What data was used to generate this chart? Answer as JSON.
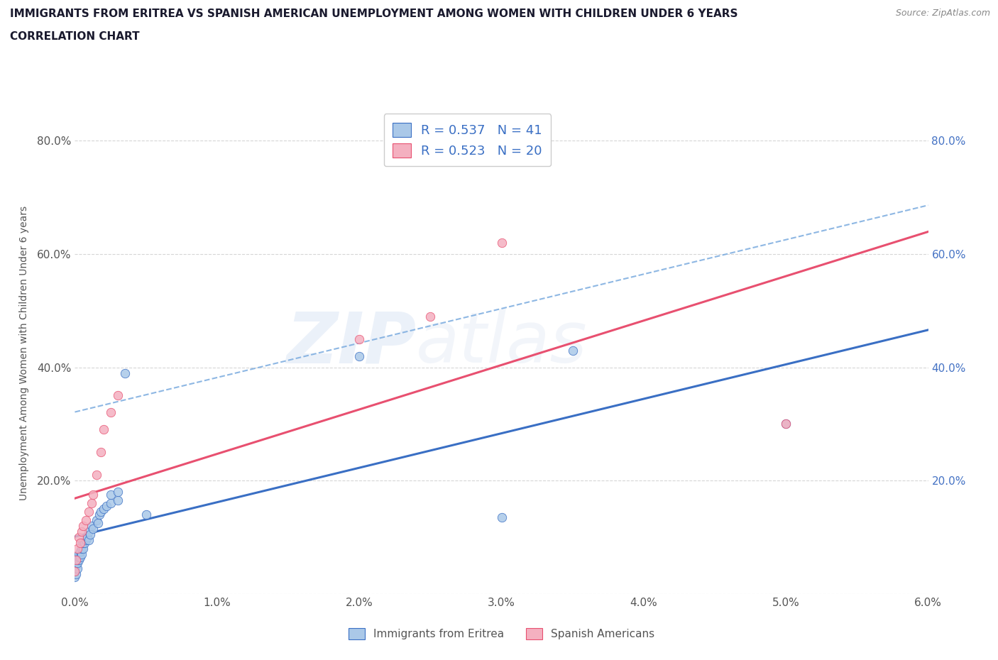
{
  "title_line1": "IMMIGRANTS FROM ERITREA VS SPANISH AMERICAN UNEMPLOYMENT AMONG WOMEN WITH CHILDREN UNDER 6 YEARS",
  "title_line2": "CORRELATION CHART",
  "source": "Source: ZipAtlas.com",
  "ylabel": "Unemployment Among Women with Children Under 6 years",
  "watermark_zip": "ZIP",
  "watermark_atlas": "atlas",
  "xlim": [
    0.0,
    0.06
  ],
  "ylim": [
    0.0,
    0.85
  ],
  "x_ticks": [
    0.0,
    0.01,
    0.02,
    0.03,
    0.04,
    0.05,
    0.06
  ],
  "x_tick_labels": [
    "0.0%",
    "1.0%",
    "2.0%",
    "3.0%",
    "4.0%",
    "5.0%",
    "6.0%"
  ],
  "y_ticks": [
    0.0,
    0.2,
    0.4,
    0.6,
    0.8
  ],
  "y_tick_labels_left": [
    "",
    "20.0%",
    "40.0%",
    "60.0%",
    "80.0%"
  ],
  "y_tick_labels_right": [
    "",
    "20.0%",
    "40.0%",
    "60.0%",
    "80.0%"
  ],
  "color_eritrea": "#aac8e8",
  "color_spanish": "#f4b0c0",
  "line_color_eritrea": "#3a6fc4",
  "line_color_spanish": "#e85070",
  "legend_r_eritrea": "0.537",
  "legend_n_eritrea": "41",
  "legend_r_spanish": "0.523",
  "legend_n_spanish": "20",
  "legend_label_eritrea": "Immigrants from Eritrea",
  "legend_label_spanish": "Spanish Americans",
  "eritrea_x": [
    0.0,
    0.0,
    0.0001,
    0.0001,
    0.0002,
    0.0002,
    0.0002,
    0.0003,
    0.0003,
    0.0003,
    0.0004,
    0.0004,
    0.0005,
    0.0005,
    0.0005,
    0.0006,
    0.0006,
    0.0007,
    0.0008,
    0.0009,
    0.001,
    0.001,
    0.0011,
    0.0012,
    0.0013,
    0.0015,
    0.0016,
    0.0017,
    0.0018,
    0.002,
    0.0022,
    0.0025,
    0.003,
    0.0025,
    0.003,
    0.0035,
    0.005,
    0.02,
    0.03,
    0.035,
    0.05
  ],
  "eritrea_y": [
    0.03,
    0.04,
    0.035,
    0.05,
    0.045,
    0.055,
    0.06,
    0.06,
    0.065,
    0.07,
    0.065,
    0.075,
    0.07,
    0.08,
    0.09,
    0.08,
    0.09,
    0.09,
    0.095,
    0.1,
    0.095,
    0.11,
    0.105,
    0.12,
    0.115,
    0.13,
    0.125,
    0.14,
    0.145,
    0.15,
    0.155,
    0.16,
    0.165,
    0.175,
    0.18,
    0.39,
    0.14,
    0.42,
    0.135,
    0.43,
    0.3
  ],
  "spanish_x": [
    0.0,
    0.0001,
    0.0002,
    0.0003,
    0.0004,
    0.0005,
    0.0006,
    0.0008,
    0.001,
    0.0012,
    0.0013,
    0.0015,
    0.0018,
    0.002,
    0.0025,
    0.003,
    0.02,
    0.025,
    0.03,
    0.05
  ],
  "spanish_y": [
    0.04,
    0.06,
    0.08,
    0.1,
    0.09,
    0.11,
    0.12,
    0.13,
    0.145,
    0.16,
    0.175,
    0.21,
    0.25,
    0.29,
    0.32,
    0.35,
    0.45,
    0.49,
    0.62,
    0.3
  ],
  "grid_color": "#cccccc",
  "background_color": "#ffffff",
  "title_color": "#1a1a2e",
  "tick_color": "#555555",
  "source_color": "#888888",
  "right_tick_color": "#4472c4",
  "dashed_line_color": "#7aabdf"
}
